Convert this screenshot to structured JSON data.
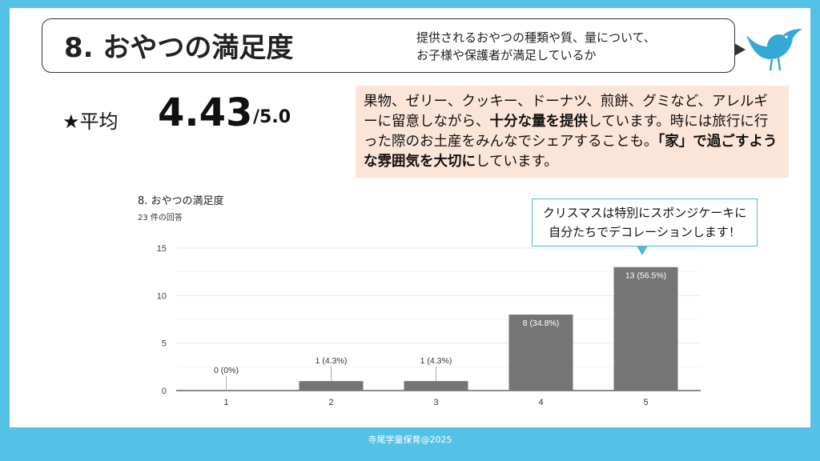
{
  "title": "8. おやつの満足度",
  "subtitle_lines": [
    "提供されるおやつの種類や質、量について、",
    "お子様や保護者が満足しているか"
  ],
  "average": {
    "label": "★平均",
    "value": "4.43",
    "max": "/5.0"
  },
  "description": [
    {
      "text": "果物、ゼリー、クッキー、ドーナツ、煎餅、グミなど、アレルギーに留意しながら、",
      "bold": false
    },
    {
      "text": "十分な量を提供",
      "bold": true
    },
    {
      "text": "しています。時には旅行に行った際のお土産をみんなでシェアすることも。",
      "bold": false
    },
    {
      "text": "「家」で過ごすような雰囲気を大切に",
      "bold": true
    },
    {
      "text": "しています。",
      "bold": false
    }
  ],
  "callout_lines": [
    "クリスマスは特別にスポンジケーキに",
    "自分たちでデコレーションします！"
  ],
  "footer": "寺尾学童保育@2025",
  "colors": {
    "frame": "#54c1e6",
    "bar": "#757575",
    "desc_bg": "#fbe4d8"
  },
  "chart_data": {
    "type": "bar",
    "title": "8. おやつの満足度",
    "subtitle": "23 件の回答",
    "categories": [
      "1",
      "2",
      "3",
      "4",
      "5"
    ],
    "values": [
      0,
      1,
      1,
      8,
      13
    ],
    "labels": [
      "0 (0%)",
      "1 (4.3%)",
      "1 (4.3%)",
      "8 (34.8%)",
      "13 (56.5%)"
    ],
    "yticks": [
      0,
      5,
      10,
      15
    ],
    "ylim": [
      0,
      15
    ]
  }
}
